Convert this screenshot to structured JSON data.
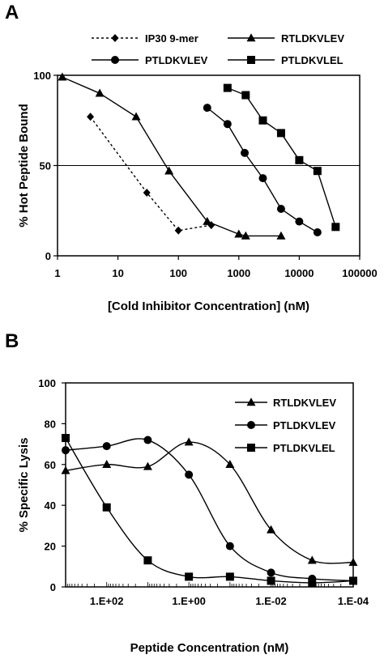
{
  "panels": {
    "a_label": "A",
    "b_label": "B"
  },
  "chart_data": [
    {
      "panel": "A",
      "type": "line",
      "title": "",
      "xlabel": "[Cold Inhibitor Concentration] (nM)",
      "ylabel": "% Hot Peptide Bound",
      "xscale": "log",
      "xlim": [
        1,
        100000
      ],
      "ylim": [
        0,
        100
      ],
      "x_tick_labels": [
        "1",
        "10",
        "100",
        "1000",
        "10000",
        "100000"
      ],
      "y_tick_labels": [
        "0",
        "50",
        "100"
      ],
      "reference_line_y": 50,
      "grid": false,
      "legend_position": "top",
      "series": [
        {
          "name": "IP30 9-mer",
          "marker": "diamond",
          "style": "dashed",
          "x": [
            3.5,
            30,
            100,
            350
          ],
          "y": [
            77,
            35,
            14,
            17
          ]
        },
        {
          "name": "RTLDKVLEV",
          "marker": "triangle",
          "style": "solid",
          "x": [
            1.2,
            5,
            20,
            70,
            300,
            1000,
            1300,
            5000
          ],
          "y": [
            99,
            90,
            77,
            47,
            19,
            12,
            11,
            11
          ]
        },
        {
          "name": "PTLDKVLEV",
          "marker": "circle",
          "style": "solid",
          "x": [
            300,
            650,
            1250,
            2500,
            5000,
            10000,
            20000
          ],
          "y": [
            82,
            73,
            57,
            43,
            26,
            19,
            13
          ]
        },
        {
          "name": "PTLDKVLEL",
          "marker": "square",
          "style": "solid",
          "x": [
            650,
            1300,
            2500,
            5000,
            10000,
            20000,
            40000
          ],
          "y": [
            93,
            89,
            75,
            68,
            53,
            47,
            16
          ]
        }
      ]
    },
    {
      "panel": "B",
      "type": "line",
      "title": "",
      "xlabel": "Peptide Concentration (nM)",
      "ylabel": "% Specific Lysis",
      "xscale": "log-reversed",
      "xlim": [
        1000,
        0.0001
      ],
      "ylim": [
        0,
        100
      ],
      "x_tick_labels": [
        "1.E+02",
        "1.E+00",
        "1.E-02",
        "1.E-04"
      ],
      "y_tick_labels": [
        "0",
        "20",
        "40",
        "60",
        "80",
        "100"
      ],
      "grid": false,
      "legend_position": "top-right",
      "series": [
        {
          "name": "RTLDKVLEV",
          "marker": "triangle",
          "x": [
            1000,
            100,
            10,
            1,
            0.1,
            0.01,
            0.001,
            0.0001
          ],
          "y": [
            57,
            60,
            59,
            71,
            60,
            28,
            13,
            12
          ]
        },
        {
          "name": "PTLDKVLEV",
          "marker": "circle",
          "x": [
            1000,
            100,
            10,
            1,
            0.1,
            0.01,
            0.001,
            0.0001
          ],
          "y": [
            67,
            69,
            72,
            55,
            20,
            7,
            4,
            3
          ]
        },
        {
          "name": "PTLDKVLEL",
          "marker": "square",
          "x": [
            1000,
            100,
            10,
            1,
            0.1,
            0.01,
            0.001,
            0.0001
          ],
          "y": [
            73,
            39,
            13,
            5,
            5,
            3,
            2,
            3
          ]
        }
      ]
    }
  ]
}
